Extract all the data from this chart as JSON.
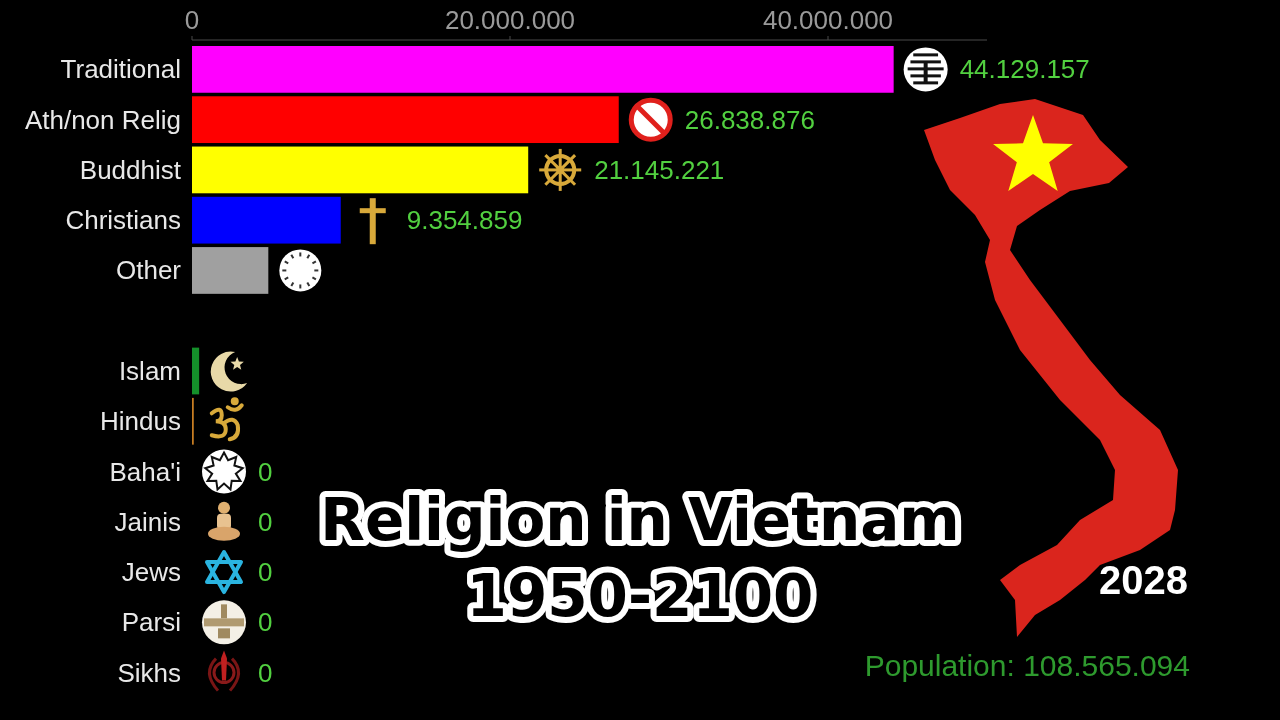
{
  "chart_data": {
    "type": "bar",
    "orientation": "horizontal",
    "title": "Religion in Vietnam",
    "subtitle": "1950-2100",
    "categories": [
      "Traditional",
      "Ath/non Relig",
      "Buddhist",
      "Christians",
      "Other",
      null,
      "Islam",
      "Hindus",
      "Baha'i",
      "Jainis",
      "Jews",
      "Parsi",
      "Sikhs"
    ],
    "values": [
      44129157,
      26838876,
      21145221,
      9354859,
      4800000,
      null,
      450000,
      110000,
      0,
      0,
      0,
      0,
      0
    ],
    "colors": [
      "#ff00ff",
      "#ff0000",
      "#ffff00",
      "#0000ff",
      "#a0a0a0",
      null,
      "#14902a",
      "#c77d22",
      null,
      null,
      null,
      null,
      null
    ],
    "value_labels": [
      "44.129.157",
      "26.838.876",
      "21.145.221",
      "9.354.859",
      null,
      null,
      null,
      null,
      "0",
      "0",
      "0",
      "0",
      "0"
    ],
    "xlim": [
      0,
      50000000
    ],
    "xticks": [
      0,
      {
        "value": 20000000,
        "label": "20.000.000"
      },
      {
        "value": 40000000,
        "label": "40.000.000"
      }
    ],
    "annotations": [
      "2028",
      "Population: 108.565.094"
    ]
  }
}
